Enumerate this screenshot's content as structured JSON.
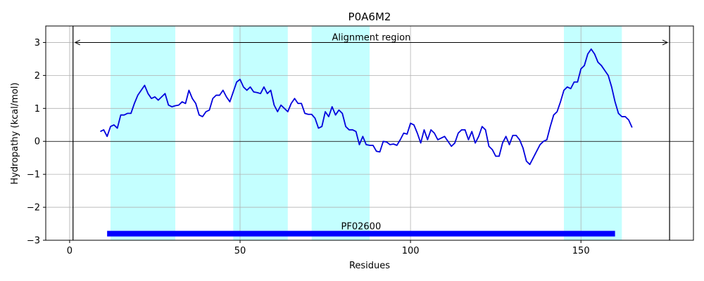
{
  "chart_data": {
    "type": "line",
    "title": "P0A6M2",
    "xlabel": "Residues",
    "ylabel": "Hydropathy (kcal/mol)",
    "xlim": [
      -7,
      183
    ],
    "ylim": [
      -3,
      3.5
    ],
    "xticks": [
      0,
      50,
      100,
      150
    ],
    "yticks": [
      -3,
      -2,
      -1,
      0,
      1,
      2,
      3
    ],
    "ytick_labels": [
      "−3",
      "−2",
      "−1",
      "0",
      "1",
      "2",
      "3"
    ],
    "grid": true,
    "line_color": "#0000dd",
    "highlight_color": "#c4ffff",
    "domain_color": "#0000ff",
    "series": [
      {
        "x": [
          9,
          10,
          11,
          12,
          13,
          14,
          15,
          16,
          17,
          18,
          19,
          20,
          21,
          22,
          23,
          24,
          25,
          26,
          27,
          28,
          29,
          30,
          31,
          32,
          33,
          34,
          35,
          36,
          37,
          38,
          39,
          40,
          41,
          42,
          43,
          44,
          45,
          46,
          47,
          48,
          49,
          50,
          51,
          52,
          53,
          54,
          55,
          56,
          57,
          58,
          59,
          60,
          61,
          62,
          63,
          64,
          65,
          66,
          67,
          68,
          69,
          70,
          71,
          72,
          73,
          74,
          75,
          76,
          77,
          78,
          79,
          80,
          81,
          82,
          83,
          84,
          85,
          86,
          87,
          88,
          89,
          90,
          91,
          92,
          93,
          94,
          95,
          96,
          97,
          98,
          99,
          100,
          101,
          102,
          103,
          104,
          105,
          106,
          107,
          108,
          109,
          110,
          111,
          112,
          113,
          114,
          115,
          116,
          117,
          118,
          119,
          120,
          121,
          122,
          123,
          124,
          125,
          126,
          127,
          128,
          129,
          130,
          131,
          132,
          133,
          134,
          135,
          136,
          137,
          138,
          139,
          140,
          141,
          142,
          143,
          144,
          145,
          146,
          147,
          148,
          149,
          150,
          151,
          152,
          153,
          154,
          155,
          156,
          157,
          158,
          159,
          160,
          161,
          162,
          163,
          164,
          165
        ],
        "y": [
          0.3,
          0.35,
          0.15,
          0.45,
          0.5,
          0.4,
          0.8,
          0.8,
          0.85,
          0.85,
          1.15,
          1.4,
          1.55,
          1.7,
          1.45,
          1.3,
          1.35,
          1.25,
          1.35,
          1.45,
          1.1,
          1.05,
          1.08,
          1.1,
          1.2,
          1.15,
          1.55,
          1.3,
          1.15,
          0.8,
          0.75,
          0.9,
          0.95,
          1.3,
          1.4,
          1.4,
          1.55,
          1.35,
          1.2,
          1.5,
          1.8,
          1.88,
          1.65,
          1.55,
          1.65,
          1.5,
          1.48,
          1.45,
          1.65,
          1.45,
          1.55,
          1.1,
          0.9,
          1.1,
          1.0,
          0.9,
          1.15,
          1.3,
          1.15,
          1.15,
          0.85,
          0.82,
          0.82,
          0.7,
          0.4,
          0.45,
          0.9,
          0.75,
          1.05,
          0.8,
          0.95,
          0.85,
          0.45,
          0.35,
          0.35,
          0.3,
          -0.1,
          0.15,
          -0.1,
          -0.12,
          -0.12,
          -0.3,
          -0.32,
          0.0,
          -0.02,
          -0.1,
          -0.08,
          -0.12,
          0.05,
          0.25,
          0.22,
          0.55,
          0.5,
          0.25,
          -0.05,
          0.35,
          0.05,
          0.35,
          0.25,
          0.05,
          0.1,
          0.15,
          0.0,
          -0.15,
          -0.05,
          0.25,
          0.35,
          0.35,
          0.05,
          0.3,
          -0.05,
          0.15,
          0.45,
          0.35,
          -0.15,
          -0.25,
          -0.45,
          -0.45,
          -0.05,
          0.15,
          -0.1,
          0.18,
          0.18,
          0.05,
          -0.2,
          -0.6,
          -0.7,
          -0.5,
          -0.3,
          -0.1,
          0.0,
          0.05,
          0.45,
          0.8,
          0.9,
          1.2,
          1.55,
          1.65,
          1.6,
          1.8,
          1.8,
          2.2,
          2.3,
          2.65,
          2.8,
          2.65,
          2.4,
          2.3,
          2.15,
          2.0,
          1.65,
          1.2,
          0.85,
          0.75,
          0.75,
          0.65,
          0.42
        ]
      }
    ],
    "highlight_regions": [
      [
        12,
        31
      ],
      [
        48,
        64
      ],
      [
        71,
        88
      ],
      [
        145,
        162
      ]
    ],
    "alignment_region": {
      "label": "Alignment region",
      "start": 1,
      "end": 176,
      "y": 3.0
    },
    "domain": {
      "label": "PF02600",
      "start": 11,
      "end": 160,
      "y": -2.8
    }
  }
}
